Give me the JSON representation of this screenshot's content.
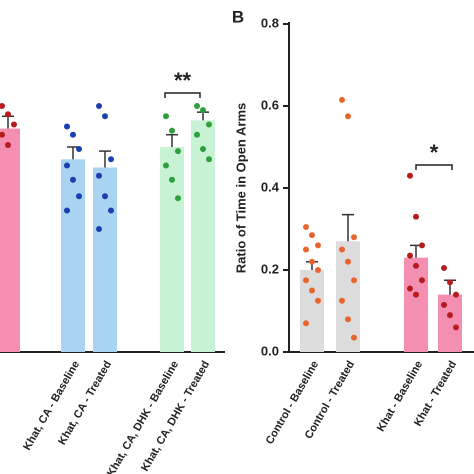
{
  "chart_data": [
    {
      "type": "bar",
      "annotation": "**",
      "categories": [
        null,
        "Khat, CA - Baseline",
        "Khat, CA - Treated",
        "Khat, CA, DHK - Baseline",
        "Khat, CA, DHK - Treated"
      ],
      "values": [
        0.545,
        0.47,
        0.45,
        0.5,
        0.565
      ],
      "errors": [
        0.03,
        0.03,
        0.04,
        0.03,
        0.02
      ],
      "points": [
        [
          0.6,
          0.58,
          0.555,
          0.53,
          0.505
        ],
        [
          0.55,
          0.53,
          0.495,
          0.455,
          0.42,
          0.38,
          0.345
        ],
        [
          0.6,
          0.575,
          0.47,
          0.43,
          0.38,
          0.345,
          0.3
        ],
        [
          0.575,
          0.54,
          0.49,
          0.455,
          0.42,
          0.375
        ],
        [
          0.6,
          0.59,
          0.555,
          0.53,
          0.495,
          0.47
        ]
      ],
      "colors": [
        "#f48fb1",
        "#a8d4f2",
        "#a8d4f2",
        "#c8f2d4",
        "#c8f2d4"
      ],
      "point_colors": [
        "#b71c1c",
        "#1a3fb0",
        "#1a3fb0",
        "#2e9e3e",
        "#2e9e3e"
      ],
      "ylim": [
        0,
        0.8
      ]
    },
    {
      "type": "bar",
      "panel_label": "B",
      "ylabel": "Ratio of Time in Open Arms",
      "annotation": "*",
      "categories": [
        "Control - Baseline",
        "Control - Treated",
        "Khat - Baseline",
        "Khat - Treated"
      ],
      "values": [
        0.2,
        0.27,
        0.23,
        0.14
      ],
      "errors": [
        0.02,
        0.065,
        0.03,
        0.035
      ],
      "points": [
        [
          0.305,
          0.285,
          0.26,
          0.25,
          0.22,
          0.2,
          0.175,
          0.15,
          0.125,
          0.07
        ],
        [
          0.615,
          0.575,
          0.28,
          0.25,
          0.22,
          0.175,
          0.125,
          0.08,
          0.035
        ],
        [
          0.43,
          0.33,
          0.26,
          0.235,
          0.21,
          0.175,
          0.155,
          0.14
        ],
        [
          0.205,
          0.17,
          0.14,
          0.115,
          0.09,
          0.06
        ]
      ],
      "colors": [
        "#dcdcdc",
        "#dcdcdc",
        "#f48fb1",
        "#f48fb1"
      ],
      "point_colors": [
        "#e8662e",
        "#e8662e",
        "#b71c1c",
        "#b71c1c"
      ],
      "ylim": [
        0,
        0.8
      ],
      "yticks": [
        {
          "value": 0,
          "label": "0.0"
        },
        0.2,
        0.4,
        0.6,
        0.8
      ]
    }
  ]
}
